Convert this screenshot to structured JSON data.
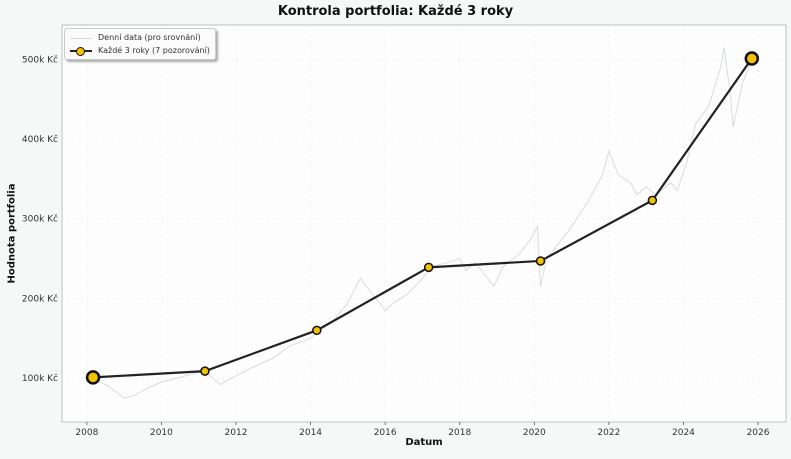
{
  "chart_data": {
    "type": "line",
    "title": "Kontrola portfolia: Každé 3 roky",
    "xlabel": "Datum",
    "ylabel": "Hodnota portfolia",
    "x_ticks": [
      "2008",
      "2010",
      "2012",
      "2014",
      "2016",
      "2018",
      "2020",
      "2022",
      "2024",
      "2026"
    ],
    "y_ticks": [
      "100k Kč",
      "200k Kč",
      "300k Kč",
      "400k Kč",
      "500k Kč"
    ],
    "y_tick_values": [
      100000,
      200000,
      300000,
      400000,
      500000
    ],
    "xlim": [
      "2007-05",
      "2026-10"
    ],
    "ylim": [
      45000,
      543000
    ],
    "grid": true,
    "legend_position": "top-left",
    "colors": {
      "daily": "#d6dcdc",
      "line": "#222222",
      "marker": "#f2c200",
      "marker_edge": "#111111"
    },
    "series": [
      {
        "name": "Denní data (pro srovnání)",
        "points": [
          [
            "2008-03",
            100000
          ],
          [
            "2008-08",
            90000
          ],
          [
            "2009-01",
            75000
          ],
          [
            "2009-04",
            78000
          ],
          [
            "2009-09",
            88000
          ],
          [
            "2010-01",
            95000
          ],
          [
            "2010-06",
            100000
          ],
          [
            "2011-01",
            107000
          ],
          [
            "2011-04",
            105000
          ],
          [
            "2011-08",
            92000
          ],
          [
            "2012-01",
            103000
          ],
          [
            "2012-06",
            113000
          ],
          [
            "2013-01",
            125000
          ],
          [
            "2013-06",
            140000
          ],
          [
            "2014-01",
            150000
          ],
          [
            "2014-04",
            160000
          ],
          [
            "2014-08",
            170000
          ],
          [
            "2015-01",
            195000
          ],
          [
            "2015-05",
            225000
          ],
          [
            "2015-09",
            205000
          ],
          [
            "2016-01",
            185000
          ],
          [
            "2016-04",
            195000
          ],
          [
            "2016-08",
            205000
          ],
          [
            "2017-01",
            225000
          ],
          [
            "2017-04",
            240000
          ],
          [
            "2017-09",
            245000
          ],
          [
            "2018-01",
            250000
          ],
          [
            "2018-03",
            235000
          ],
          [
            "2018-06",
            245000
          ],
          [
            "2018-12",
            215000
          ],
          [
            "2019-03",
            240000
          ],
          [
            "2019-08",
            255000
          ],
          [
            "2019-12",
            275000
          ],
          [
            "2020-02",
            290000
          ],
          [
            "2020-03",
            215000
          ],
          [
            "2020-05",
            250000
          ],
          [
            "2020-10",
            275000
          ],
          [
            "2021-01",
            290000
          ],
          [
            "2021-06",
            320000
          ],
          [
            "2021-11",
            355000
          ],
          [
            "2022-01",
            385000
          ],
          [
            "2022-04",
            355000
          ],
          [
            "2022-08",
            345000
          ],
          [
            "2022-10",
            330000
          ],
          [
            "2023-01",
            340000
          ],
          [
            "2023-04",
            330000
          ],
          [
            "2023-09",
            345000
          ],
          [
            "2023-11",
            335000
          ],
          [
            "2024-02",
            370000
          ],
          [
            "2024-05",
            420000
          ],
          [
            "2024-09",
            440000
          ],
          [
            "2025-01",
            490000
          ],
          [
            "2025-02",
            515000
          ],
          [
            "2025-04",
            460000
          ],
          [
            "2025-05",
            415000
          ],
          [
            "2025-08",
            470000
          ],
          [
            "2025-11",
            500000
          ]
        ]
      },
      {
        "name": "Každé 3 roky (7 pozorování)",
        "points": [
          [
            "2008-03",
            101000
          ],
          [
            "2011-03",
            108800
          ],
          [
            "2014-03",
            160000
          ],
          [
            "2017-03",
            239000
          ],
          [
            "2020-03",
            247000
          ],
          [
            "2023-03",
            323000
          ],
          [
            "2025-11",
            501000
          ]
        ]
      }
    ]
  }
}
